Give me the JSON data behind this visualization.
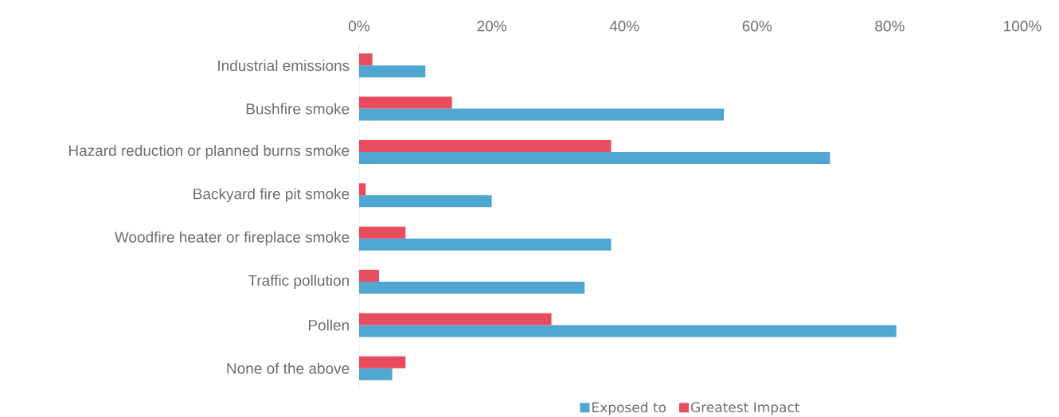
{
  "chart_data": {
    "type": "bar",
    "orientation": "horizontal",
    "legend": "bottom",
    "categories": [
      "Industrial emissions",
      "Bushfire smoke",
      "Hazard reduction or planned burns smoke",
      "Backyard fire pit smoke",
      "Woodfire heater or fireplace smoke",
      "Traffic pollution",
      "Pollen",
      "None of the above"
    ],
    "series": [
      {
        "name": "Exposed to",
        "color": "#4ea6d1",
        "values": [
          10,
          55,
          71,
          20,
          38,
          34,
          81,
          5
        ]
      },
      {
        "name": "Greatest Impact",
        "color": "#e84c5f",
        "values": [
          2,
          14,
          38,
          1,
          7,
          3,
          29,
          7
        ]
      }
    ],
    "xlim": [
      0,
      100
    ],
    "xticks": [
      {
        "value": 0,
        "label": "0%"
      },
      {
        "value": 20,
        "label": "20%"
      },
      {
        "value": 40,
        "label": "40%"
      },
      {
        "value": 60,
        "label": "60%"
      },
      {
        "value": 80,
        "label": "80%"
      },
      {
        "value": 100,
        "label": "100%"
      }
    ]
  }
}
